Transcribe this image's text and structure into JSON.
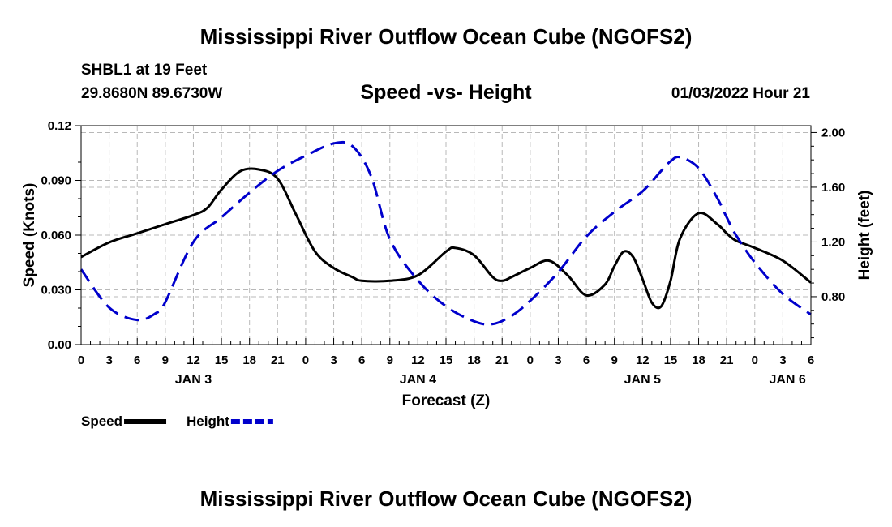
{
  "header": {
    "title": "Mississippi River Outflow Ocean Cube (NGOFS2)",
    "station": "SHBL1 at 19 Feet",
    "coords": "29.8680N  89.6730W",
    "datetime": "01/03/2022 Hour 21"
  },
  "footer": {
    "title": "Mississippi River Outflow Ocean Cube (NGOFS2)"
  },
  "chart_data": {
    "type": "line",
    "title": "Speed -vs- Height",
    "xlabel": "Forecast (Z)",
    "ylabel_left": "Speed (Knots)",
    "ylabel_right": "Height (feet)",
    "xlim": [
      0,
      78
    ],
    "ylim_left": [
      0,
      0.12
    ],
    "ylim_right": [
      0.45,
      2.05
    ],
    "grid": true,
    "legend_position": "bottom-left",
    "x_ticks": [
      0,
      3,
      6,
      9,
      12,
      15,
      18,
      21,
      24,
      27,
      30,
      33,
      36,
      39,
      42,
      45,
      48,
      51,
      54,
      57,
      60,
      63,
      66,
      69,
      72,
      75,
      78
    ],
    "x_tick_labels": [
      "0",
      "3",
      "6",
      "9",
      "12",
      "15",
      "18",
      "21",
      "0",
      "3",
      "6",
      "9",
      "12",
      "15",
      "18",
      "21",
      "0",
      "3",
      "6",
      "9",
      "12",
      "15",
      "18",
      "21",
      "0",
      "3",
      "6"
    ],
    "day_labels": [
      {
        "x": 12,
        "label": "JAN 3"
      },
      {
        "x": 36,
        "label": "JAN 4"
      },
      {
        "x": 60,
        "label": "JAN 5"
      },
      {
        "x": 75.5,
        "label": "JAN 6"
      }
    ],
    "y_left_ticks": [
      0,
      0.03,
      0.06,
      0.09,
      0.12
    ],
    "y_left_tick_labels": [
      "0.00",
      "0.030",
      "0.060",
      "0.090",
      "0.12"
    ],
    "y_right_ticks": [
      0.8,
      1.2,
      1.6,
      2.0
    ],
    "y_right_tick_labels": [
      "0.80",
      "1.20",
      "1.60",
      "2.00"
    ],
    "series": [
      {
        "name": "Speed",
        "axis": "left",
        "color": "#000000",
        "style": "solid",
        "x": [
          0,
          3,
          6,
          9,
          12,
          13.5,
          15,
          17,
          19,
          21,
          23,
          25,
          27,
          29,
          30,
          33,
          36,
          39,
          40,
          42,
          44,
          45,
          46,
          48,
          50,
          52,
          54,
          56,
          57,
          58,
          59,
          60,
          61,
          62,
          63,
          64,
          66,
          68,
          69,
          70,
          72,
          75,
          78
        ],
        "values": [
          0.048,
          0.056,
          0.061,
          0.066,
          0.071,
          0.075,
          0.085,
          0.095,
          0.096,
          0.091,
          0.071,
          0.051,
          0.042,
          0.037,
          0.035,
          0.035,
          0.038,
          0.051,
          0.053,
          0.049,
          0.037,
          0.035,
          0.037,
          0.042,
          0.046,
          0.038,
          0.027,
          0.033,
          0.043,
          0.051,
          0.048,
          0.036,
          0.023,
          0.021,
          0.035,
          0.058,
          0.072,
          0.066,
          0.061,
          0.057,
          0.053,
          0.046,
          0.034
        ]
      },
      {
        "name": "Height",
        "axis": "right",
        "color": "#0000cc",
        "style": "dashed",
        "x": [
          0,
          3,
          6,
          8,
          9,
          12,
          15,
          18,
          21,
          24,
          27,
          29,
          31,
          33,
          36,
          39,
          42,
          44,
          46,
          48,
          51,
          54,
          57,
          60,
          62,
          63,
          64,
          66,
          68,
          69,
          70,
          72,
          75,
          78
        ],
        "values": [
          1.0,
          0.72,
          0.63,
          0.68,
          0.76,
          1.2,
          1.38,
          1.56,
          1.72,
          1.83,
          1.92,
          1.9,
          1.68,
          1.22,
          0.92,
          0.73,
          0.62,
          0.6,
          0.66,
          0.77,
          0.98,
          1.24,
          1.42,
          1.57,
          1.72,
          1.79,
          1.82,
          1.74,
          1.52,
          1.38,
          1.25,
          1.05,
          0.82,
          0.67
        ]
      }
    ]
  }
}
